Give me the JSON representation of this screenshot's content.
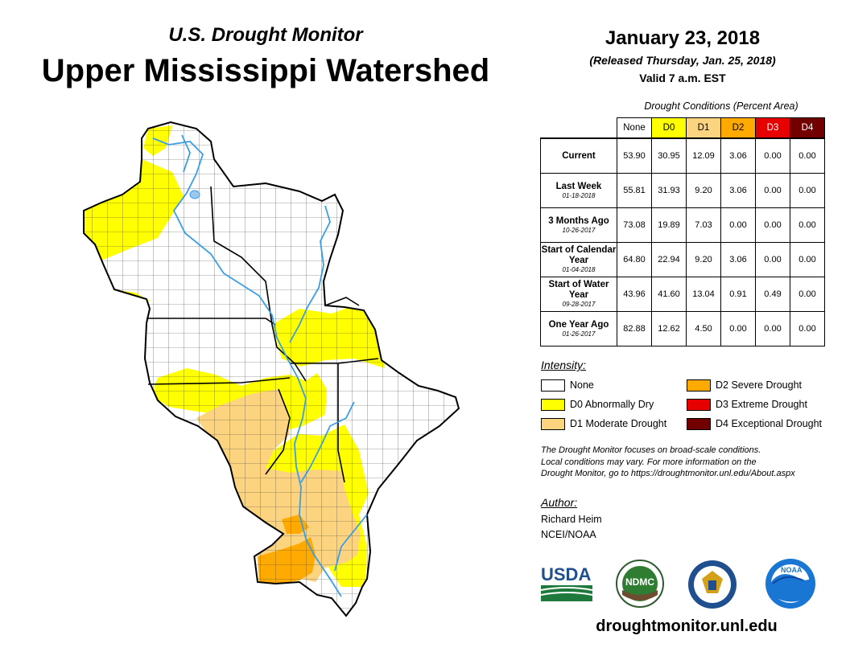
{
  "header": {
    "subtitle": "U.S. Drought Monitor",
    "title": "Upper Mississippi Watershed",
    "date": "January 23, 2018",
    "released": "(Released Thursday, Jan. 25, 2018)",
    "valid": "Valid 7 a.m. EST"
  },
  "table": {
    "caption": "Drought Conditions (Percent Area)",
    "columns": [
      "None",
      "D0",
      "D1",
      "D2",
      "D3",
      "D4"
    ],
    "rows": [
      {
        "label": "Current",
        "sub": "",
        "values": [
          "53.90",
          "30.95",
          "12.09",
          "3.06",
          "0.00",
          "0.00"
        ]
      },
      {
        "label": "Last Week",
        "sub": "01-18-2018",
        "values": [
          "55.81",
          "31.93",
          "9.20",
          "3.06",
          "0.00",
          "0.00"
        ]
      },
      {
        "label": "3 Months Ago",
        "sub": "10-26-2017",
        "values": [
          "73.08",
          "19.89",
          "7.03",
          "0.00",
          "0.00",
          "0.00"
        ]
      },
      {
        "label": "Start of Calendar Year",
        "sub": "01-04-2018",
        "values": [
          "64.80",
          "22.94",
          "9.20",
          "3.06",
          "0.00",
          "0.00"
        ]
      },
      {
        "label": "Start of Water Year",
        "sub": "09-28-2017",
        "values": [
          "43.96",
          "41.60",
          "13.04",
          "0.91",
          "0.49",
          "0.00"
        ]
      },
      {
        "label": "One Year Ago",
        "sub": "01-26-2017",
        "values": [
          "82.88",
          "12.62",
          "4.50",
          "0.00",
          "0.00",
          "0.00"
        ]
      }
    ]
  },
  "legend": {
    "title": "Intensity:",
    "items": [
      {
        "label": "None",
        "color": "#ffffff"
      },
      {
        "label": "D0 Abnormally Dry",
        "color": "#ffff00"
      },
      {
        "label": "D1 Moderate Drought",
        "color": "#fcd37f"
      },
      {
        "label": "D2 Severe Drought",
        "color": "#ffaa00"
      },
      {
        "label": "D3 Extreme Drought",
        "color": "#e60000"
      },
      {
        "label": "D4 Exceptional Drought",
        "color": "#730000"
      }
    ]
  },
  "note": {
    "line1": "The Drought Monitor focuses on broad-scale conditions.",
    "line2": "Local conditions may vary. For more information on the",
    "line3": "Drought Monitor, go to https://droughtmonitor.unl.edu/About.aspx"
  },
  "author": {
    "title": "Author:",
    "name": "Richard Heim",
    "org": "NCEI/NOAA"
  },
  "logos": {
    "usda": "USDA",
    "ndmc": "NDMC",
    "noaa": "NOAA"
  },
  "footer": {
    "website": "droughtmonitor.unl.edu"
  },
  "colors": {
    "none": "#ffffff",
    "d0": "#ffff00",
    "d1": "#fcd37f",
    "d2": "#ffaa00",
    "d3": "#e60000",
    "d4": "#730000",
    "river": "#3a9ee4",
    "lake": "#9cc8f0"
  }
}
